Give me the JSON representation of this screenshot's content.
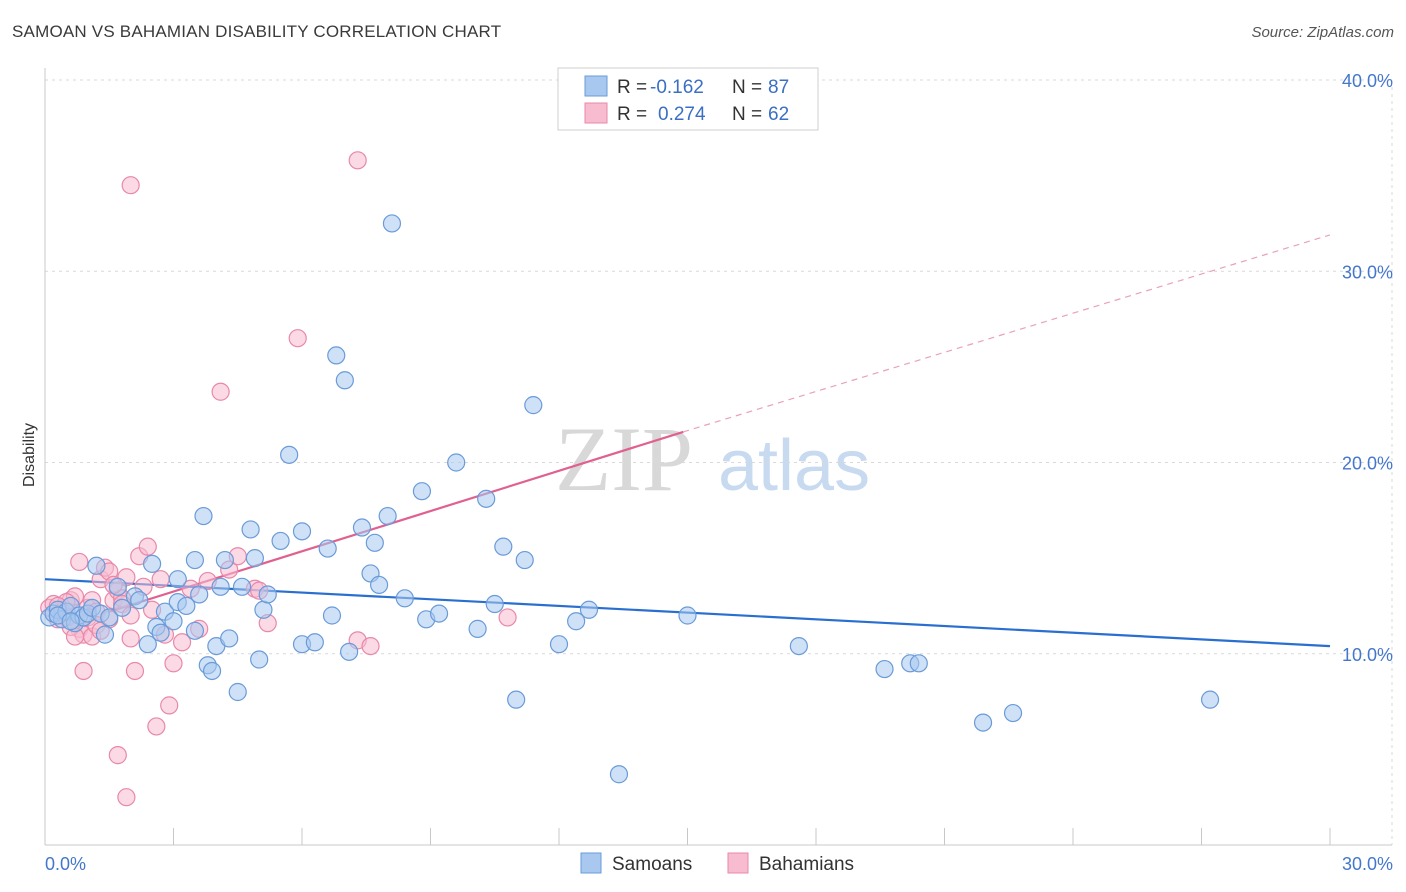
{
  "header": {
    "title": "SAMOAN VS BAHAMIAN DISABILITY CORRELATION CHART",
    "source": "Source: ZipAtlas.com"
  },
  "legend": {
    "rows": [
      {
        "r_label": "R =",
        "r_value": "-0.162",
        "n_label": "N =",
        "n_value": "87",
        "color": "#a8c8f0",
        "stroke": "#6a9bd8"
      },
      {
        "r_label": "R =",
        "r_value": "0.274",
        "n_label": "N =",
        "n_value": "62",
        "color": "#f8bcd0",
        "stroke": "#e888aa"
      }
    ]
  },
  "bottom_legend": {
    "items": [
      {
        "label": "Samoans",
        "color": "#a8c8f0",
        "stroke": "#6a9bd8"
      },
      {
        "label": "Bahamians",
        "color": "#f8bcd0",
        "stroke": "#e888aa"
      }
    ]
  },
  "watermark": {
    "zip": "ZIP",
    "atlas": "atlas"
  },
  "chart_data": {
    "type": "scatter",
    "xlabel": "",
    "ylabel": "Disability",
    "xlim": [
      0,
      30
    ],
    "ylim": [
      0,
      40
    ],
    "x_tick_labels": [
      "0.0%",
      "30.0%"
    ],
    "y_ticks": [
      10,
      20,
      30,
      40
    ],
    "y_tick_labels": [
      "10.0%",
      "20.0%",
      "30.0%",
      "40.0%"
    ],
    "grid": true,
    "legend_position": "top-center",
    "series": [
      {
        "name": "Samoans",
        "color": "#6a9bd8",
        "fill": "#a8c8f0",
        "trend": {
          "x": [
            0,
            30
          ],
          "y": [
            13.9,
            10.4
          ],
          "line_color": "#2a6fd0"
        },
        "points": [
          [
            0.1,
            11.9
          ],
          [
            0.2,
            12.1
          ],
          [
            0.3,
            12.3
          ],
          [
            0.4,
            11.8
          ],
          [
            0.5,
            12.2
          ],
          [
            0.6,
            12.5
          ],
          [
            0.7,
            11.6
          ],
          [
            0.8,
            12.0
          ],
          [
            0.9,
            11.9
          ],
          [
            1.0,
            12.1
          ],
          [
            1.1,
            12.4
          ],
          [
            1.2,
            14.6
          ],
          [
            1.3,
            12.1
          ],
          [
            1.4,
            11.0
          ],
          [
            1.5,
            11.9
          ],
          [
            1.7,
            13.5
          ],
          [
            1.8,
            12.4
          ],
          [
            2.1,
            13.0
          ],
          [
            2.2,
            12.8
          ],
          [
            2.4,
            10.5
          ],
          [
            2.5,
            14.7
          ],
          [
            2.6,
            11.4
          ],
          [
            2.7,
            11.1
          ],
          [
            2.8,
            12.2
          ],
          [
            3.0,
            11.7
          ],
          [
            3.1,
            12.7
          ],
          [
            3.1,
            13.9
          ],
          [
            3.3,
            12.5
          ],
          [
            3.5,
            14.9
          ],
          [
            3.5,
            11.2
          ],
          [
            3.6,
            13.1
          ],
          [
            3.7,
            17.2
          ],
          [
            3.8,
            9.4
          ],
          [
            3.9,
            9.1
          ],
          [
            4.0,
            10.4
          ],
          [
            4.1,
            13.5
          ],
          [
            4.2,
            14.9
          ],
          [
            4.3,
            10.8
          ],
          [
            4.5,
            8.0
          ],
          [
            4.6,
            13.5
          ],
          [
            4.8,
            16.5
          ],
          [
            4.9,
            15.0
          ],
          [
            5.0,
            9.7
          ],
          [
            5.1,
            12.3
          ],
          [
            5.2,
            13.1
          ],
          [
            5.5,
            15.9
          ],
          [
            5.7,
            20.4
          ],
          [
            6.0,
            16.4
          ],
          [
            6.0,
            10.5
          ],
          [
            6.3,
            10.6
          ],
          [
            6.6,
            15.5
          ],
          [
            6.7,
            12.0
          ],
          [
            6.8,
            25.6
          ],
          [
            7.0,
            24.3
          ],
          [
            7.1,
            10.1
          ],
          [
            7.4,
            16.6
          ],
          [
            7.6,
            14.2
          ],
          [
            7.7,
            15.8
          ],
          [
            7.8,
            13.6
          ],
          [
            8.0,
            17.2
          ],
          [
            8.1,
            32.5
          ],
          [
            8.4,
            12.9
          ],
          [
            8.8,
            18.5
          ],
          [
            8.9,
            11.8
          ],
          [
            9.2,
            12.1
          ],
          [
            9.6,
            20.0
          ],
          [
            10.1,
            11.3
          ],
          [
            10.3,
            18.1
          ],
          [
            10.5,
            12.6
          ],
          [
            10.7,
            15.6
          ],
          [
            11.0,
            7.6
          ],
          [
            11.2,
            14.9
          ],
          [
            11.4,
            23.0
          ],
          [
            12.0,
            10.5
          ],
          [
            12.4,
            11.7
          ],
          [
            12.7,
            12.3
          ],
          [
            13.4,
            3.7
          ],
          [
            15.0,
            12.0
          ],
          [
            17.6,
            10.4
          ],
          [
            19.6,
            9.2
          ],
          [
            20.2,
            9.5
          ],
          [
            20.4,
            9.5
          ],
          [
            21.9,
            6.4
          ],
          [
            22.6,
            6.9
          ],
          [
            27.2,
            7.6
          ],
          [
            0.3,
            12.0
          ],
          [
            0.6,
            11.7
          ]
        ]
      },
      {
        "name": "Bahamians",
        "color": "#e888aa",
        "fill": "#f8bcd0",
        "trend": {
          "x": [
            1.5,
            14.9
          ],
          "y": [
            12.2,
            21.6
          ],
          "line_color": "#e06090",
          "dashed_to": {
            "x": 30,
            "y": 31.9
          }
        },
        "points": [
          [
            0.1,
            12.4
          ],
          [
            0.2,
            12.6
          ],
          [
            0.3,
            11.8
          ],
          [
            0.4,
            12.2
          ],
          [
            0.5,
            11.9
          ],
          [
            0.6,
            12.8
          ],
          [
            0.7,
            13.0
          ],
          [
            0.8,
            11.3
          ],
          [
            0.9,
            11.0
          ],
          [
            1.0,
            12.4
          ],
          [
            1.1,
            12.8
          ],
          [
            1.2,
            12.2
          ],
          [
            1.3,
            13.9
          ],
          [
            1.4,
            14.5
          ],
          [
            1.5,
            11.8
          ],
          [
            1.6,
            12.8
          ],
          [
            1.7,
            13.3
          ],
          [
            1.8,
            12.9
          ],
          [
            1.9,
            14.0
          ],
          [
            2.0,
            10.8
          ],
          [
            2.1,
            9.1
          ],
          [
            2.2,
            15.1
          ],
          [
            2.3,
            13.5
          ],
          [
            2.4,
            15.6
          ],
          [
            2.5,
            12.3
          ],
          [
            2.6,
            6.2
          ],
          [
            2.7,
            13.9
          ],
          [
            2.8,
            11.0
          ],
          [
            2.9,
            7.3
          ],
          [
            3.0,
            9.5
          ],
          [
            3.2,
            10.6
          ],
          [
            3.4,
            13.4
          ],
          [
            3.6,
            11.3
          ],
          [
            3.8,
            13.8
          ],
          [
            4.1,
            23.7
          ],
          [
            4.3,
            14.4
          ],
          [
            4.5,
            15.1
          ],
          [
            4.9,
            13.4
          ],
          [
            5.0,
            13.3
          ],
          [
            5.2,
            11.6
          ],
          [
            5.9,
            26.5
          ],
          [
            7.3,
            35.8
          ],
          [
            7.3,
            10.7
          ],
          [
            7.6,
            10.4
          ],
          [
            2.0,
            34.5
          ],
          [
            1.7,
            4.7
          ],
          [
            1.9,
            2.5
          ],
          [
            1.0,
            11.9
          ],
          [
            0.8,
            14.8
          ],
          [
            0.9,
            9.1
          ],
          [
            1.1,
            10.9
          ],
          [
            1.2,
            11.5
          ],
          [
            1.3,
            11.2
          ],
          [
            1.5,
            14.3
          ],
          [
            1.6,
            13.6
          ],
          [
            1.8,
            12.6
          ],
          [
            2.0,
            12.0
          ],
          [
            10.8,
            11.9
          ],
          [
            0.5,
            12.7
          ],
          [
            0.6,
            11.4
          ],
          [
            0.7,
            10.9
          ],
          [
            0.3,
            12.5
          ]
        ]
      }
    ]
  }
}
